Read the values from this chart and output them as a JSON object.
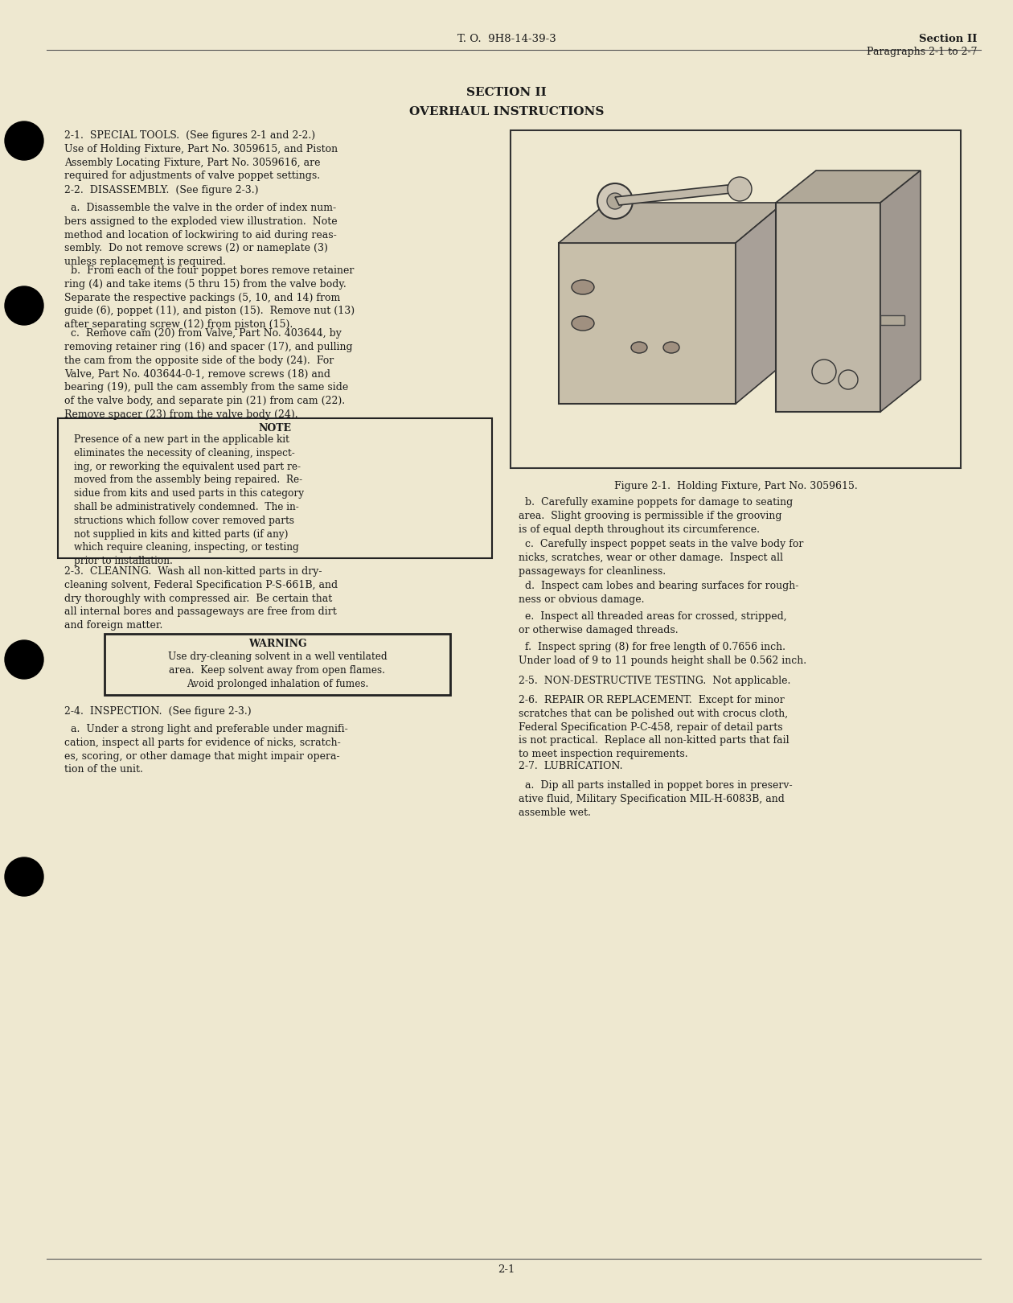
{
  "bg_color": "#eee8d0",
  "text_color": "#1a1a1a",
  "header_left": "T. O.  9H8-14-39-3",
  "header_right_line1": "Section II",
  "header_right_line2": "Paragraphs 2-1 to 2-7",
  "section_title": "SECTION II",
  "section_subtitle": "OVERHAUL INSTRUCTIONS",
  "footer": "2-1",
  "para_21": "2-1.  SPECIAL TOOLS.  (See figures 2-1 and 2-2.)\nUse of Holding Fixture, Part No. 3059615, and Piston\nAssembly Locating Fixture, Part No. 3059616, are\nrequired for adjustments of valve poppet settings.",
  "para_22_head": "2-2.  DISASSEMBLY.  (See figure 2-3.)",
  "para_22a": "  a.  Disassemble the valve in the order of index num-\nbers assigned to the exploded view illustration.  Note\nmethod and location of lockwiring to aid during reas-\nsembly.  Do not remove screws (2) or nameplate (3)\nunless replacement is required.",
  "para_22b": "  b.  From each of the four poppet bores remove retainer\nring (4) and take items (5 thru 15) from the valve body.\nSeparate the respective packings (5, 10, and 14) from\nguide (6), poppet (11), and piston (15).  Remove nut (13)\nafter separating screw (12) from piston (15).",
  "para_22c": "  c.  Remove cam (20) from Valve, Part No. 403644, by\nremoving retainer ring (16) and spacer (17), and pulling\nthe cam from the opposite side of the body (24).  For\nValve, Part No. 403644-0-1, remove screws (18) and\nbearing (19), pull the cam assembly from the same side\nof the valve body, and separate pin (21) from cam (22).\nRemove spacer (23) from the valve body (24).",
  "note_head": "NOTE",
  "note_body": "Presence of a new part in the applicable kit\neliminates the necessity of cleaning, inspect-\ning, or reworking the equivalent used part re-\nmoved from the assembly being repaired.  Re-\nsidue from kits and used parts in this category\nshall be administratively condemned.  The in-\nstructions which follow cover removed parts\nnot supplied in kits and kitted parts (if any)\nwhich require cleaning, inspecting, or testing\nprior to installation.",
  "para_23": "2-3.  CLEANING.  Wash all non-kitted parts in dry-\ncleaning solvent, Federal Specification P-S-661B, and\ndry thoroughly with compressed air.  Be certain that\nall internal bores and passageways are free from dirt\nand foreign matter.",
  "warn_head": "WARNING",
  "warn_body": "Use dry-cleaning solvent in a well ventilated\narea.  Keep solvent away from open flames.\nAvoid prolonged inhalation of fumes.",
  "para_24_head": "2-4.  INSPECTION.  (See figure 2-3.)",
  "para_24a": "  a.  Under a strong light and preferable under magnifi-\ncation, inspect all parts for evidence of nicks, scratch-\nes, scoring, or other damage that might impair opera-\ntion of the unit.",
  "fig_caption": "Figure 2-1.  Holding Fixture, Part No. 3059615.",
  "para_rb": "  b.  Carefully examine poppets for damage to seating\narea.  Slight grooving is permissible if the grooving\nis of equal depth throughout its circumference.",
  "para_rc": "  c.  Carefully inspect poppet seats in the valve body for\nnicks, scratches, wear or other damage.  Inspect all\npassageways for cleanliness.",
  "para_rd": "  d.  Inspect cam lobes and bearing surfaces for rough-\nness or obvious damage.",
  "para_re": "  e.  Inspect all threaded areas for crossed, stripped,\nor otherwise damaged threads.",
  "para_rf": "  f.  Inspect spring (8) for free length of 0.7656 inch.\nUnder load of 9 to 11 pounds height shall be 0.562 inch.",
  "para_25": "2-5.  NON-DESTRUCTIVE TESTING.  Not applicable.",
  "para_26": "2-6.  REPAIR OR REPLACEMENT.  Except for minor\nscratches that can be polished out with crocus cloth,\nFederal Specification P-C-458, repair of detail parts\nis not practical.  Replace all non-kitted parts that fail\nto meet inspection requirements.",
  "para_27_head": "2-7.  LUBRICATION.",
  "para_27a": "  a.  Dip all parts installed in poppet bores in preserv-\native fluid, Military Specification MIL-H-6083B, and\nassemble wet."
}
